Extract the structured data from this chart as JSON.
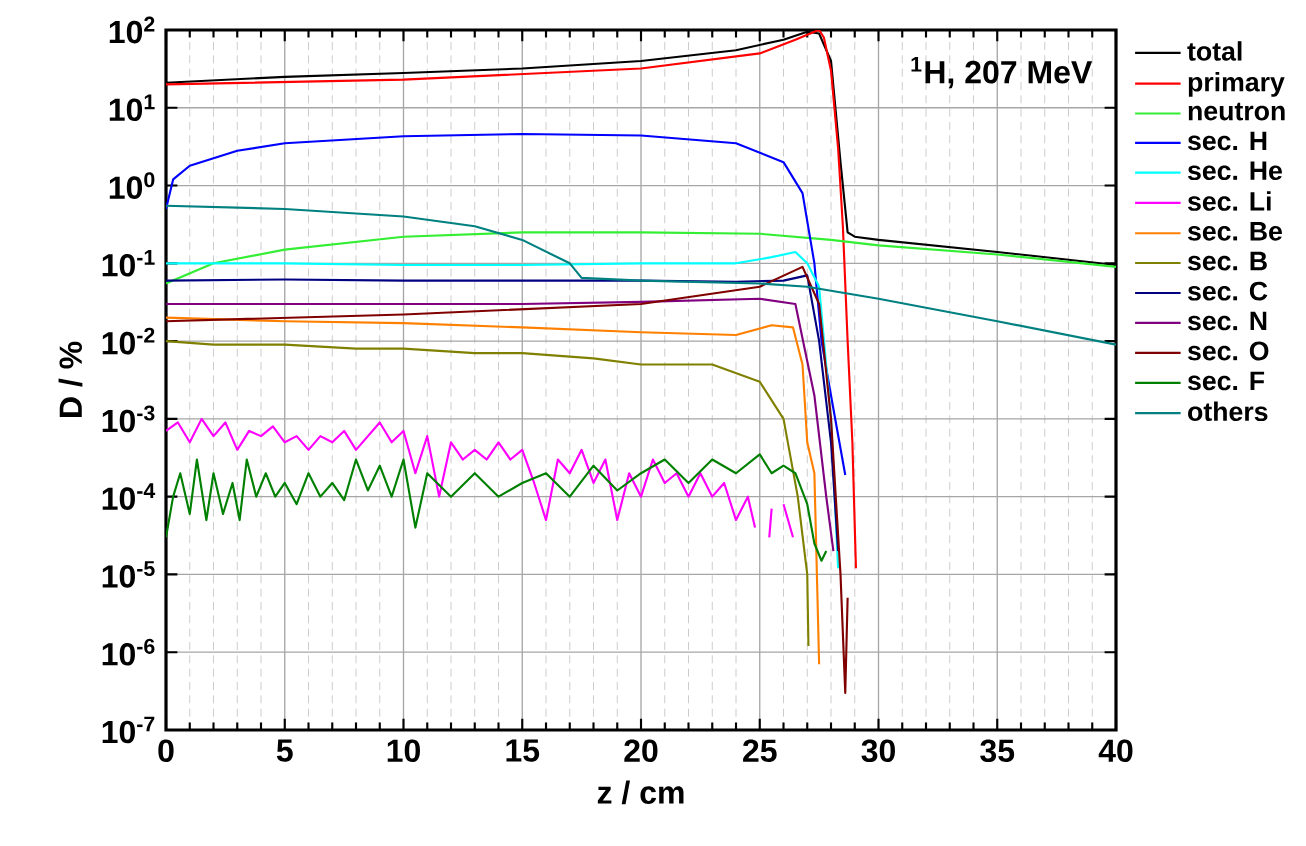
{
  "chart_data": {
    "type": "line",
    "xlabel": "z / cm",
    "ylabel": "D / %",
    "log": "y",
    "grid": true,
    "legend": "right",
    "marker": "none",
    "line_style": "solid",
    "annotations": [
      "$^{1}$H, 207 MeV"
    ],
    "xlim": [
      0,
      40
    ],
    "xticks": [
      0,
      5,
      10,
      15,
      20,
      25,
      30,
      35,
      40
    ],
    "ylim": [
      1e-07,
      100
    ],
    "yticks": [
      {
        "value": 1e-07,
        "label": "10$^{-7}$"
      },
      {
        "value": 1e-06,
        "label": "10$^{-6}$"
      },
      {
        "value": 1e-05,
        "label": "10$^{-5}$"
      },
      {
        "value": 0.0001,
        "label": "10$^{-4}$"
      },
      {
        "value": 0.001,
        "label": "10$^{-3}$"
      },
      {
        "value": 0.01,
        "label": "10$^{-2}$"
      },
      {
        "value": 0.1,
        "label": "10$^{-1}$"
      },
      {
        "value": 1,
        "label": "10$^{0}$"
      },
      {
        "value": 10,
        "label": "10$^{1}$"
      },
      {
        "value": 100,
        "label": "10$^{2}$"
      }
    ],
    "series": [
      {
        "name": "total",
        "color": "#000000",
        "x": [
          0,
          5,
          10,
          15,
          20,
          24,
          26,
          27,
          27.5,
          28,
          28.4,
          28.7,
          29,
          30,
          35,
          40
        ],
        "values": [
          21,
          25,
          28,
          32,
          40,
          55,
          75,
          95,
          90,
          40,
          2,
          0.25,
          0.22,
          0.2,
          0.14,
          0.095
        ]
      },
      {
        "name": "primary",
        "color": "#ff0000",
        "x": [
          0,
          10,
          20,
          25,
          26.5,
          27.3,
          27.5,
          27.7,
          28,
          28.3,
          28.5,
          28.7,
          28.9,
          29.05
        ],
        "values": [
          20,
          23,
          32,
          50,
          75,
          95,
          100,
          80,
          30,
          3,
          0.3,
          0.01,
          0.0005,
          1.2e-05
        ]
      },
      {
        "name": "neutron",
        "color": "#33ee33",
        "x": [
          0,
          2,
          5,
          10,
          15,
          20,
          25,
          28,
          30,
          35,
          40
        ],
        "values": [
          0.055,
          0.1,
          0.15,
          0.22,
          0.25,
          0.25,
          0.24,
          0.2,
          0.17,
          0.13,
          0.09
        ]
      },
      {
        "name": "sec. H",
        "color": "#0000ff",
        "x": [
          0,
          0.3,
          1,
          3,
          5,
          10,
          15,
          20,
          24,
          26,
          26.8,
          27.3,
          27.6,
          28,
          28.6
        ],
        "values": [
          0.5,
          1.2,
          1.8,
          2.8,
          3.5,
          4.3,
          4.6,
          4.4,
          3.5,
          2.0,
          0.8,
          0.1,
          0.01,
          0.002,
          0.00019
        ]
      },
      {
        "name": "sec. He",
        "color": "#00ffff",
        "x": [
          0,
          5,
          10,
          15,
          20,
          24,
          25.5,
          26.5,
          27,
          27.5,
          28,
          28.3
        ],
        "values": [
          0.1,
          0.1,
          0.095,
          0.095,
          0.1,
          0.1,
          0.12,
          0.14,
          0.1,
          0.05,
          0.001,
          1.2e-05
        ]
      },
      {
        "name": "sec. Li",
        "color": "#ff00ff",
        "x": [
          0,
          0.5,
          1,
          1.5,
          2,
          2.5,
          3,
          3.5,
          4,
          4.5,
          5,
          5.5,
          6,
          6.5,
          7,
          7.5,
          8,
          8.5,
          9,
          9.5,
          10,
          10.5,
          11,
          11.5,
          12,
          12.5,
          13,
          13.5,
          14,
          14.5,
          15,
          15.5,
          16,
          16.5,
          17,
          17.5,
          18,
          18.5,
          19,
          19.5,
          20,
          20.5,
          21,
          21.5,
          22,
          22.5,
          23,
          23.5,
          24,
          24.5,
          24.8,
          25,
          25.4,
          25.5,
          25.8,
          26.0,
          26.4
        ],
        "values": [
          0.0007,
          0.0009,
          0.0005,
          0.001,
          0.0006,
          0.0009,
          0.0004,
          0.0007,
          0.0006,
          0.0008,
          0.0005,
          0.0006,
          0.0004,
          0.0006,
          0.0005,
          0.0007,
          0.0004,
          0.0006,
          0.0009,
          0.0005,
          0.0007,
          0.0002,
          0.0006,
          0.0001,
          0.0005,
          0.0003,
          0.0004,
          0.0003,
          0.0005,
          0.0003,
          0.0004,
          0.00015,
          5e-05,
          0.0003,
          0.0002,
          0.0004,
          0.00015,
          0.0003,
          5e-05,
          0.0002,
          0.0001,
          0.0003,
          0.00015,
          0.0002,
          0.0001,
          0.0002,
          0.0001,
          0.00015,
          5e-05,
          0.0001,
          4e-05,
          null,
          3e-05,
          7e-05,
          null,
          8e-05,
          3e-05
        ]
      },
      {
        "name": "sec. Be",
        "color": "#ff8000",
        "x": [
          0,
          5,
          10,
          15,
          20,
          24,
          25.5,
          26.4,
          26.8,
          27,
          27.3,
          27.5
        ],
        "values": [
          0.02,
          0.018,
          0.017,
          0.015,
          0.013,
          0.012,
          0.016,
          0.015,
          0.005,
          0.0005,
          0.0002,
          7e-07
        ]
      },
      {
        "name": "sec. B",
        "color": "#808000",
        "x": [
          0,
          2,
          5,
          8,
          10,
          13,
          15,
          18,
          20,
          23,
          25,
          26,
          26.6,
          27,
          27.05
        ],
        "values": [
          0.01,
          0.009,
          0.009,
          0.008,
          0.008,
          0.007,
          0.007,
          0.006,
          0.005,
          0.005,
          0.003,
          0.001,
          0.0001,
          1e-05,
          1.2e-06
        ]
      },
      {
        "name": "sec. C",
        "color": "#000080",
        "x": [
          0,
          5,
          10,
          15,
          20,
          24,
          26,
          27,
          27.5,
          28,
          28.3
        ],
        "values": [
          0.06,
          0.062,
          0.06,
          0.06,
          0.06,
          0.058,
          0.06,
          0.07,
          0.01,
          0.0005,
          2e-05
        ]
      },
      {
        "name": "sec. N",
        "color": "#800080",
        "x": [
          0,
          5,
          10,
          15,
          20,
          25,
          26.5,
          27.3,
          27.8,
          28.1
        ],
        "values": [
          0.03,
          0.03,
          0.03,
          0.03,
          0.032,
          0.035,
          0.03,
          0.002,
          0.0001,
          2e-05
        ]
      },
      {
        "name": "sec. O",
        "color": "#800000",
        "x": [
          0,
          10,
          20,
          25,
          26.8,
          27.5,
          28,
          28.4,
          28.6,
          28.7
        ],
        "values": [
          0.018,
          0.022,
          0.03,
          0.05,
          0.09,
          0.03,
          0.001,
          1e-05,
          3e-07,
          5e-06
        ]
      },
      {
        "name": "sec. F",
        "color": "#008000",
        "x": [
          0,
          0.3,
          0.6,
          1,
          1.3,
          1.7,
          2,
          2.4,
          2.8,
          3.1,
          3.4,
          3.8,
          4.2,
          4.6,
          5,
          5.5,
          6,
          6.5,
          7,
          7.5,
          8,
          8.5,
          9,
          9.5,
          10,
          10.5,
          11,
          12,
          13,
          14,
          15,
          16,
          17,
          18,
          19,
          20,
          21,
          22,
          23,
          24,
          25,
          25.5,
          26,
          26.5,
          27,
          27.3,
          27.6,
          27.8
        ],
        "values": [
          3e-05,
          0.0001,
          0.0002,
          6e-05,
          0.0003,
          5e-05,
          0.0002,
          6e-05,
          0.00015,
          5e-05,
          0.0003,
          0.0001,
          0.0002,
          0.0001,
          0.00015,
          8e-05,
          0.0002,
          0.0001,
          0.00015,
          9e-05,
          0.0003,
          0.00012,
          0.00025,
          0.0001,
          0.0003,
          4e-05,
          0.0002,
          0.0001,
          0.0002,
          0.0001,
          0.00015,
          0.0002,
          0.0001,
          0.00025,
          0.00012,
          0.0002,
          0.0003,
          0.00015,
          0.0003,
          0.0002,
          0.00035,
          0.0002,
          0.00025,
          0.0002,
          8e-05,
          2.5e-05,
          1.5e-05,
          2e-05
        ]
      },
      {
        "name": "others",
        "color": "#008080",
        "x": [
          0,
          5,
          10,
          13,
          15,
          17,
          17.5,
          20,
          25,
          27,
          30,
          35,
          40
        ],
        "values": [
          0.55,
          0.5,
          0.4,
          0.3,
          0.2,
          0.1,
          0.065,
          0.06,
          0.055,
          0.05,
          0.035,
          0.018,
          0.009
        ]
      }
    ]
  }
}
